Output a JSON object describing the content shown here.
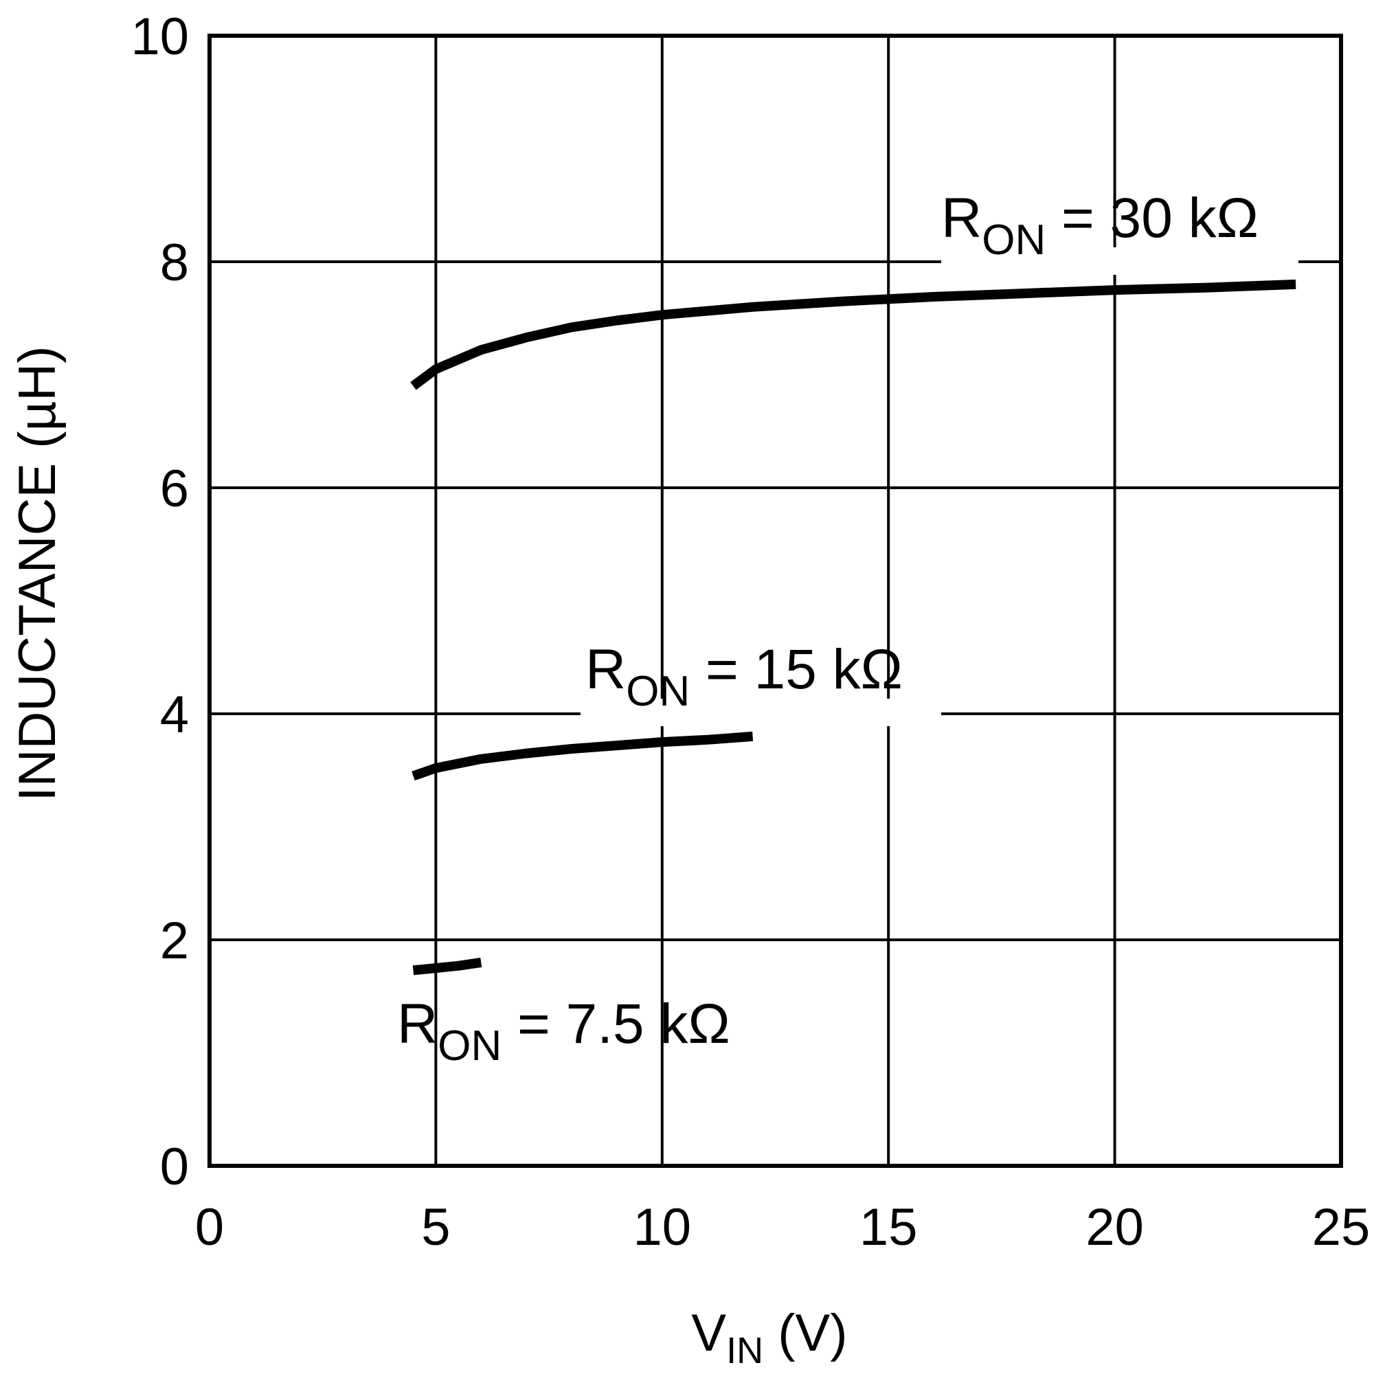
{
  "chart_data": {
    "type": "line",
    "title": "",
    "xlabel": {
      "main": "V",
      "sub": "IN",
      "suffix": " (V)"
    },
    "ylabel": "INDUCTANCE (µH)",
    "xlim": [
      0,
      25
    ],
    "ylim": [
      0,
      10
    ],
    "x_ticks": [
      0,
      5,
      10,
      15,
      20,
      25
    ],
    "y_ticks": [
      0,
      2,
      4,
      6,
      8,
      10
    ],
    "x_tick_labels": [
      "0",
      "5",
      "10",
      "15",
      "20",
      "25"
    ],
    "y_tick_labels": [
      "0",
      "2",
      "4",
      "6",
      "8",
      "10"
    ],
    "grid": true,
    "legend": "none (inline labels)",
    "series": [
      {
        "name": "R_ON = 30 kΩ",
        "label_parts": {
          "main": "R",
          "sub": "ON",
          "rest": " = 30 kΩ"
        },
        "x": [
          4.5,
          5,
          6,
          7,
          8,
          9,
          10,
          12,
          14,
          16,
          18,
          20,
          22,
          24
        ],
        "y": [
          6.9,
          7.05,
          7.22,
          7.33,
          7.42,
          7.48,
          7.53,
          7.6,
          7.65,
          7.69,
          7.72,
          7.75,
          7.77,
          7.8
        ]
      },
      {
        "name": "R_ON = 15 kΩ",
        "label_parts": {
          "main": "R",
          "sub": "ON",
          "rest": " = 15 kΩ"
        },
        "x": [
          4.5,
          5,
          6,
          7,
          8,
          9,
          10,
          11,
          12
        ],
        "y": [
          3.45,
          3.52,
          3.6,
          3.65,
          3.69,
          3.72,
          3.75,
          3.77,
          3.8
        ]
      },
      {
        "name": "R_ON = 7.5 kΩ",
        "label_parts": {
          "main": "R",
          "sub": "ON",
          "rest": " = 7.5 kΩ"
        },
        "x": [
          4.5,
          5,
          5.5,
          6
        ],
        "y": [
          1.73,
          1.75,
          1.77,
          1.8
        ]
      }
    ],
    "line_color": "#000000"
  }
}
